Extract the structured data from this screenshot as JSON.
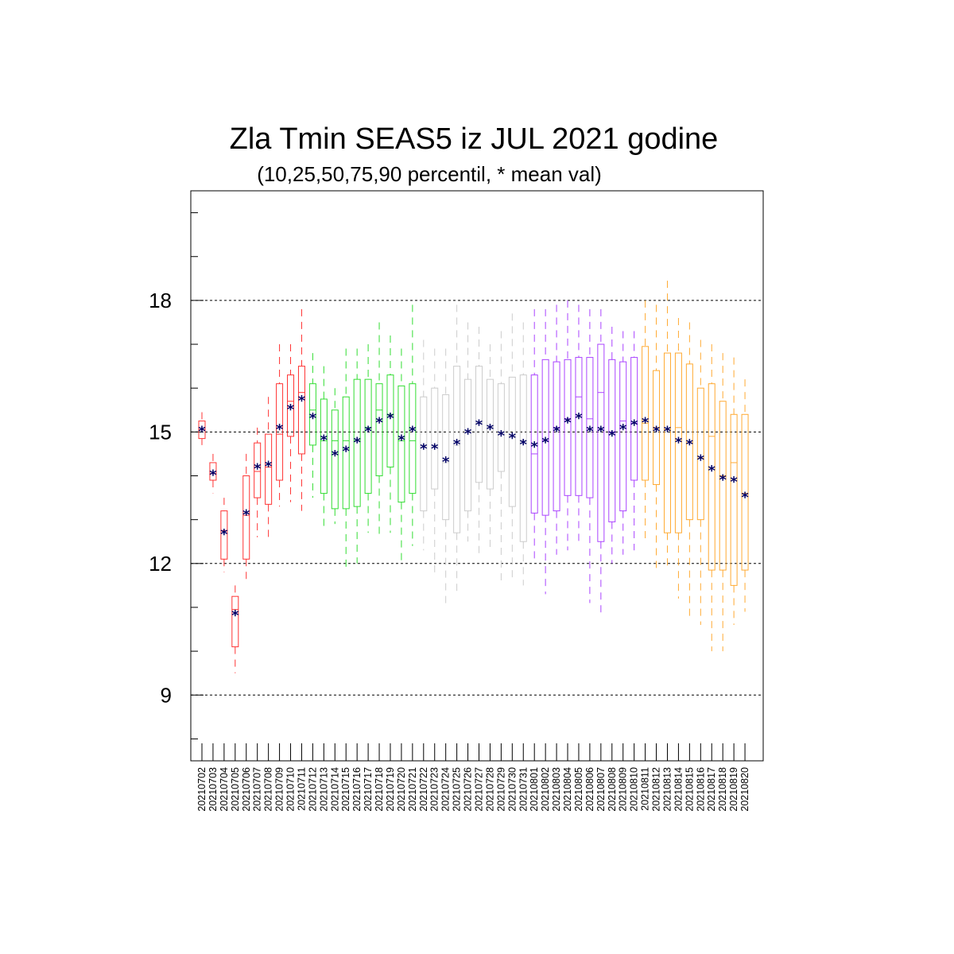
{
  "chart_data": {
    "type": "box",
    "title": "Zla Tmin SEAS5 iz JUL 2021 godine",
    "subtitle": "(10,25,50,75,90 percentil, * mean val)",
    "xlabel": "",
    "ylabel": "",
    "ylim": [
      7.5,
      20.5
    ],
    "yticks": [
      9,
      12,
      15,
      18
    ],
    "grid_y": [
      9,
      12,
      15,
      18
    ],
    "grid": true,
    "mean_marker_color": "#000066",
    "colors": {
      "red": "#ff3333",
      "green": "#33dd33",
      "grey": "#cccccc",
      "purple": "#aa44ff",
      "orange": "#ffaa33"
    },
    "categories": [
      "20210702",
      "20210703",
      "20210704",
      "20210705",
      "20210706",
      "20210707",
      "20210708",
      "20210709",
      "20210710",
      "20210711",
      "20210712",
      "20210713",
      "20210714",
      "20210715",
      "20210716",
      "20210717",
      "20210718",
      "20210719",
      "20210720",
      "20210721",
      "20210722",
      "20210723",
      "20210724",
      "20210725",
      "20210726",
      "20210727",
      "20210728",
      "20210729",
      "20210730",
      "20210731",
      "20210801",
      "20210802",
      "20210803",
      "20210804",
      "20210805",
      "20210806",
      "20210807",
      "20210808",
      "20210809",
      "20210810",
      "20210811",
      "20210812",
      "20210813",
      "20210814",
      "20210815",
      "20210816",
      "20210817",
      "20210818",
      "20210819",
      "20210820"
    ],
    "boxes": [
      {
        "p10": 14.7,
        "p25": 14.85,
        "p50": 15.05,
        "p75": 15.25,
        "p90": 15.45,
        "mean": 15.05,
        "color": "red"
      },
      {
        "p10": 13.6,
        "p25": 13.9,
        "p50": 14.05,
        "p75": 14.3,
        "p90": 14.5,
        "mean": 14.05,
        "color": "red"
      },
      {
        "p10": 11.8,
        "p25": 12.1,
        "p50": 12.75,
        "p75": 13.2,
        "p90": 13.5,
        "mean": 12.7,
        "color": "red"
      },
      {
        "p10": 9.5,
        "p25": 10.1,
        "p50": 10.95,
        "p75": 11.25,
        "p90": 11.5,
        "mean": 10.85,
        "color": "red"
      },
      {
        "p10": 11.6,
        "p25": 12.1,
        "p50": 13.1,
        "p75": 14.0,
        "p90": 14.5,
        "mean": 13.15,
        "color": "red"
      },
      {
        "p10": 12.6,
        "p25": 13.5,
        "p50": 14.1,
        "p75": 14.75,
        "p90": 15.1,
        "mean": 14.2,
        "color": "red"
      },
      {
        "p10": 12.5,
        "p25": 13.35,
        "p50": 14.2,
        "p75": 14.95,
        "p90": 15.8,
        "mean": 14.25,
        "color": "red"
      },
      {
        "p10": 13.3,
        "p25": 13.9,
        "p50": 14.95,
        "p75": 16.1,
        "p90": 17.0,
        "mean": 15.1,
        "color": "red"
      },
      {
        "p10": 13.4,
        "p25": 14.9,
        "p50": 15.7,
        "p75": 16.3,
        "p90": 17.0,
        "mean": 15.55,
        "color": "red"
      },
      {
        "p10": 13.2,
        "p25": 14.5,
        "p50": 15.9,
        "p75": 16.5,
        "p90": 17.8,
        "mean": 15.75,
        "color": "red"
      },
      {
        "p10": 13.5,
        "p25": 14.7,
        "p50": 15.5,
        "p75": 16.1,
        "p90": 16.8,
        "mean": 15.35,
        "color": "green"
      },
      {
        "p10": 12.8,
        "p25": 13.6,
        "p50": 14.8,
        "p75": 15.75,
        "p90": 16.5,
        "mean": 14.85,
        "color": "green"
      },
      {
        "p10": 12.9,
        "p25": 13.25,
        "p50": 14.8,
        "p75": 15.5,
        "p90": 16.0,
        "mean": 14.5,
        "color": "green"
      },
      {
        "p10": 11.85,
        "p25": 13.25,
        "p50": 14.8,
        "p75": 15.8,
        "p90": 16.9,
        "mean": 14.6,
        "color": "green"
      },
      {
        "p10": 12.0,
        "p25": 13.3,
        "p50": 14.8,
        "p75": 16.2,
        "p90": 16.9,
        "mean": 14.8,
        "color": "green"
      },
      {
        "p10": 12.7,
        "p25": 13.6,
        "p50": 15.1,
        "p75": 16.2,
        "p90": 17.0,
        "mean": 15.05,
        "color": "green"
      },
      {
        "p10": 12.6,
        "p25": 14.0,
        "p50": 15.5,
        "p75": 16.1,
        "p90": 17.5,
        "mean": 15.25,
        "color": "green"
      },
      {
        "p10": 12.7,
        "p25": 14.2,
        "p50": 15.4,
        "p75": 16.3,
        "p90": 17.2,
        "mean": 15.35,
        "color": "green"
      },
      {
        "p10": 12.0,
        "p25": 13.4,
        "p50": 14.8,
        "p75": 16.05,
        "p90": 16.9,
        "mean": 14.85,
        "color": "green"
      },
      {
        "p10": 12.4,
        "p25": 13.6,
        "p50": 14.8,
        "p75": 16.1,
        "p90": 17.9,
        "mean": 15.05,
        "color": "green"
      },
      {
        "p10": 12.3,
        "p25": 13.2,
        "p50": 14.7,
        "p75": 15.8,
        "p90": 17.1,
        "mean": 14.65,
        "color": "grey"
      },
      {
        "p10": 11.8,
        "p25": 13.7,
        "p50": 14.7,
        "p75": 16.0,
        "p90": 16.9,
        "mean": 14.65,
        "color": "grey"
      },
      {
        "p10": 11.0,
        "p25": 13.0,
        "p50": 14.3,
        "p75": 15.85,
        "p90": 16.9,
        "mean": 14.35,
        "color": "grey"
      },
      {
        "p10": 11.3,
        "p25": 12.7,
        "p50": 14.7,
        "p75": 16.5,
        "p90": 17.9,
        "mean": 14.75,
        "color": "grey"
      },
      {
        "p10": 12.5,
        "p25": 13.2,
        "p50": 15.0,
        "p75": 16.2,
        "p90": 17.5,
        "mean": 15.0,
        "color": "grey"
      },
      {
        "p10": 12.2,
        "p25": 13.85,
        "p50": 15.2,
        "p75": 16.5,
        "p90": 17.4,
        "mean": 15.2,
        "color": "grey"
      },
      {
        "p10": 12.3,
        "p25": 13.7,
        "p50": 15.1,
        "p75": 16.2,
        "p90": 17.0,
        "mean": 15.1,
        "color": "grey"
      },
      {
        "p10": 11.5,
        "p25": 14.1,
        "p50": 15.0,
        "p75": 16.1,
        "p90": 17.3,
        "mean": 14.95,
        "color": "grey"
      },
      {
        "p10": 11.6,
        "p25": 13.3,
        "p50": 14.9,
        "p75": 16.25,
        "p90": 17.7,
        "mean": 14.9,
        "color": "grey"
      },
      {
        "p10": 11.5,
        "p25": 12.5,
        "p50": 14.8,
        "p75": 16.3,
        "p90": 17.5,
        "mean": 14.75,
        "color": "grey"
      },
      {
        "p10": 12.0,
        "p25": 13.15,
        "p50": 14.5,
        "p75": 16.3,
        "p90": 17.8,
        "mean": 14.7,
        "color": "purple"
      },
      {
        "p10": 11.3,
        "p25": 13.1,
        "p50": 14.8,
        "p75": 16.65,
        "p90": 17.8,
        "mean": 14.8,
        "color": "purple"
      },
      {
        "p10": 12.2,
        "p25": 13.2,
        "p50": 15.1,
        "p75": 16.6,
        "p90": 17.9,
        "mean": 15.05,
        "color": "purple"
      },
      {
        "p10": 12.3,
        "p25": 13.55,
        "p50": 15.3,
        "p75": 16.65,
        "p90": 18.0,
        "mean": 15.25,
        "color": "purple"
      },
      {
        "p10": 12.4,
        "p25": 13.55,
        "p50": 15.8,
        "p75": 16.7,
        "p90": 17.9,
        "mean": 15.35,
        "color": "purple"
      },
      {
        "p10": 11.1,
        "p25": 13.5,
        "p50": 15.3,
        "p75": 16.7,
        "p90": 17.8,
        "mean": 15.05,
        "color": "purple"
      },
      {
        "p10": 10.8,
        "p25": 12.5,
        "p50": 15.9,
        "p75": 17.0,
        "p90": 17.8,
        "mean": 15.05,
        "color": "purple"
      },
      {
        "p10": 12.0,
        "p25": 12.95,
        "p50": 15.0,
        "p75": 16.65,
        "p90": 17.4,
        "mean": 14.95,
        "color": "purple"
      },
      {
        "p10": 12.2,
        "p25": 13.2,
        "p50": 15.25,
        "p75": 16.6,
        "p90": 17.3,
        "mean": 15.1,
        "color": "purple"
      },
      {
        "p10": 12.3,
        "p25": 13.9,
        "p50": 15.2,
        "p75": 16.7,
        "p90": 17.3,
        "mean": 15.2,
        "color": "purple"
      },
      {
        "p10": 12.5,
        "p25": 13.9,
        "p50": 15.2,
        "p75": 16.95,
        "p90": 18.0,
        "mean": 15.25,
        "color": "orange"
      },
      {
        "p10": 11.9,
        "p25": 13.8,
        "p50": 15.1,
        "p75": 16.4,
        "p90": 17.9,
        "mean": 15.05,
        "color": "orange"
      },
      {
        "p10": 11.9,
        "p25": 12.7,
        "p50": 15.05,
        "p75": 16.8,
        "p90": 18.45,
        "mean": 15.05,
        "color": "orange"
      },
      {
        "p10": 11.2,
        "p25": 12.7,
        "p50": 15.1,
        "p75": 16.8,
        "p90": 17.6,
        "mean": 14.8,
        "color": "orange"
      },
      {
        "p10": 10.8,
        "p25": 13.0,
        "p50": 14.75,
        "p75": 16.55,
        "p90": 17.5,
        "mean": 14.75,
        "color": "orange"
      },
      {
        "p10": 10.6,
        "p25": 13.0,
        "p50": 14.4,
        "p75": 16.0,
        "p90": 17.1,
        "mean": 14.4,
        "color": "orange"
      },
      {
        "p10": 10.0,
        "p25": 11.85,
        "p50": 14.9,
        "p75": 16.1,
        "p90": 17.0,
        "mean": 14.15,
        "color": "orange"
      },
      {
        "p10": 10.0,
        "p25": 11.85,
        "p50": 14.0,
        "p75": 15.7,
        "p90": 16.8,
        "mean": 13.95,
        "color": "orange"
      },
      {
        "p10": 10.6,
        "p25": 11.5,
        "p50": 14.3,
        "p75": 15.4,
        "p90": 16.7,
        "mean": 13.9,
        "color": "orange"
      },
      {
        "p10": 10.9,
        "p25": 11.85,
        "p50": 13.6,
        "p75": 15.4,
        "p90": 16.2,
        "mean": 13.55,
        "color": "orange"
      }
    ]
  }
}
